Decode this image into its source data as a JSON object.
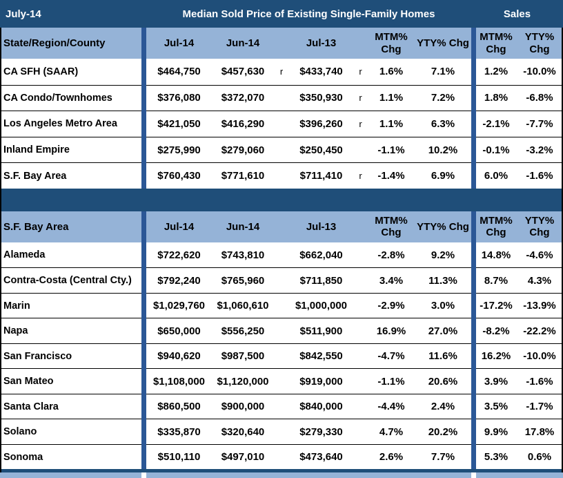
{
  "banner": {
    "date_label": "July-14",
    "title": "Median Sold Price of Existing Single-Family Homes",
    "sales_label": "Sales"
  },
  "headers": {
    "jul14": "Jul-14",
    "jun14": "Jun-14",
    "jul13": "Jul-13",
    "mtm_line1": "MTM%",
    "mtm_line2": "Chg",
    "yty": "YTY% Chg",
    "sales_mtm_line1": "MTM%",
    "sales_mtm_line2": "Chg",
    "sales_yty_line1": "YTY%",
    "sales_yty_line2": "Chg"
  },
  "colors": {
    "navy_band": "#1F4E79",
    "divider_navy": "#2B5796",
    "header_blue": "#95B3D7",
    "row_bg": "#FFFFFF",
    "banner_text": "#FFFFFF",
    "text": "#000000"
  },
  "chart_data": [
    {
      "type": "table",
      "title": "Median Sold Price of Existing Single-Family Homes",
      "label": "State/Region/County",
      "columns": [
        "Jul-14",
        "Jun-14",
        "Jul-13",
        "MTM% Chg",
        "YTY% Chg",
        "Sales MTM% Chg",
        "Sales YTY% Chg"
      ],
      "rows": [
        {
          "region": "CA SFH (SAAR)",
          "jul14": "$464,750",
          "jun14": "$457,630",
          "r_jun": "r",
          "jul13": "$433,740",
          "r_jul": "r",
          "mtm": "1.6%",
          "yty": "7.1%",
          "sales_mtm": "1.2%",
          "sales_yty": "-10.0%"
        },
        {
          "region": "CA Condo/Townhomes",
          "jul14": "$376,080",
          "jun14": "$372,070",
          "r_jun": "",
          "jul13": "$350,930",
          "r_jul": "r",
          "mtm": "1.1%",
          "yty": "7.2%",
          "sales_mtm": "1.8%",
          "sales_yty": "-6.8%"
        },
        {
          "region": "Los Angeles Metro Area",
          "jul14": "$421,050",
          "jun14": "$416,290",
          "r_jun": "",
          "jul13": "$396,260",
          "r_jul": "r",
          "mtm": "1.1%",
          "yty": "6.3%",
          "sales_mtm": "-2.1%",
          "sales_yty": "-7.7%"
        },
        {
          "region": "Inland Empire",
          "jul14": "$275,990",
          "jun14": "$279,060",
          "r_jun": "",
          "jul13": "$250,450",
          "r_jul": "",
          "mtm": "-1.1%",
          "yty": "10.2%",
          "sales_mtm": "-0.1%",
          "sales_yty": "-3.2%"
        },
        {
          "region": "S.F. Bay Area",
          "jul14": "$760,430",
          "jun14": "$771,610",
          "r_jun": "",
          "jul13": "$711,410",
          "r_jul": "r",
          "mtm": "-1.4%",
          "yty": "6.9%",
          "sales_mtm": "6.0%",
          "sales_yty": "-1.6%"
        }
      ]
    },
    {
      "type": "table",
      "title": "Median Sold Price of Existing Single-Family Homes - S.F. Bay Area",
      "label": "S.F. Bay Area",
      "columns": [
        "Jul-14",
        "Jun-14",
        "Jul-13",
        "MTM% Chg",
        "YTY% Chg",
        "Sales MTM% Chg",
        "Sales YTY% Chg"
      ],
      "rows": [
        {
          "region": "Alameda",
          "jul14": "$722,620",
          "jun14": "$743,810",
          "r_jun": "",
          "jul13": "$662,040",
          "r_jul": "",
          "mtm": "-2.8%",
          "yty": "9.2%",
          "sales_mtm": "14.8%",
          "sales_yty": "-4.6%"
        },
        {
          "region": "Contra-Costa (Central Cty.)",
          "jul14": "$792,240",
          "jun14": "$765,960",
          "r_jun": "",
          "jul13": "$711,850",
          "r_jul": "",
          "mtm": "3.4%",
          "yty": "11.3%",
          "sales_mtm": "8.7%",
          "sales_yty": "4.3%"
        },
        {
          "region": "Marin",
          "jul14": "$1,029,760",
          "jun14": "$1,060,610",
          "r_jun": "",
          "jul13": "$1,000,000",
          "r_jul": "",
          "mtm": "-2.9%",
          "yty": "3.0%",
          "sales_mtm": "-17.2%",
          "sales_yty": "-13.9%"
        },
        {
          "region": "Napa",
          "jul14": "$650,000",
          "jun14": "$556,250",
          "r_jun": "",
          "jul13": "$511,900",
          "r_jul": "",
          "mtm": "16.9%",
          "yty": "27.0%",
          "sales_mtm": "-8.2%",
          "sales_yty": "-22.2%"
        },
        {
          "region": "San Francisco",
          "jul14": "$940,620",
          "jun14": "$987,500",
          "r_jun": "",
          "jul13": "$842,550",
          "r_jul": "",
          "mtm": "-4.7%",
          "yty": "11.6%",
          "sales_mtm": "16.2%",
          "sales_yty": "-10.0%"
        },
        {
          "region": "San Mateo",
          "jul14": "$1,108,000",
          "jun14": "$1,120,000",
          "r_jun": "",
          "jul13": "$919,000",
          "r_jul": "",
          "mtm": "-1.1%",
          "yty": "20.6%",
          "sales_mtm": "3.9%",
          "sales_yty": "-1.6%"
        },
        {
          "region": "Santa Clara",
          "jul14": "$860,500",
          "jun14": "$900,000",
          "r_jun": "",
          "jul13": "$840,000",
          "r_jul": "",
          "mtm": "-4.4%",
          "yty": "2.4%",
          "sales_mtm": "3.5%",
          "sales_yty": "-1.7%"
        },
        {
          "region": "Solano",
          "jul14": "$335,870",
          "jun14": "$320,640",
          "r_jun": "",
          "jul13": "$279,330",
          "r_jul": "",
          "mtm": "4.7%",
          "yty": "20.2%",
          "sales_mtm": "9.9%",
          "sales_yty": "17.8%"
        },
        {
          "region": "Sonoma",
          "jul14": "$510,110",
          "jun14": "$497,010",
          "r_jun": "",
          "jul13": "$473,640",
          "r_jul": "",
          "mtm": "2.6%",
          "yty": "7.7%",
          "sales_mtm": "5.3%",
          "sales_yty": "0.6%"
        }
      ]
    }
  ]
}
